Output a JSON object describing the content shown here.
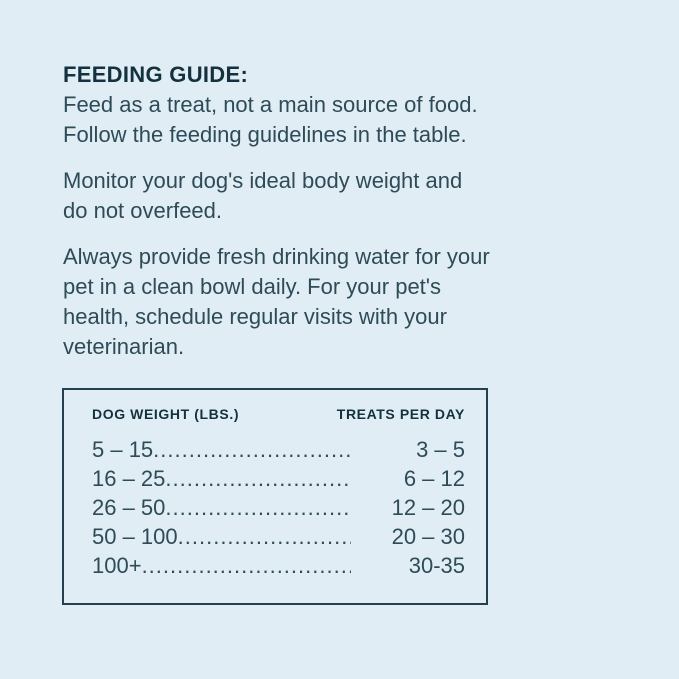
{
  "page": {
    "background_color": "#e1edf4",
    "text_color": "#2e4b58",
    "heading_color": "#143140",
    "table_border_color": "#22404e"
  },
  "guide": {
    "heading": "FEEDING GUIDE:",
    "paragraph1": {
      "line1": "Feed as a treat, not a main source of food.",
      "line2": "Follow the feeding guidelines in the table."
    },
    "paragraph2": {
      "line1": "Monitor your dog's ideal body weight and",
      "line2": "do not overfeed."
    },
    "paragraph3": {
      "line1": "Always provide fresh drinking water for your",
      "line2": "pet in a clean bowl daily. For your pet's",
      "line3": "health, schedule regular visits with your",
      "line4": "veterinarian."
    }
  },
  "feeding_table": {
    "col1_header": "DOG WEIGHT (LBS.)",
    "col2_header": "TREATS PER DAY",
    "dot_leader": "................................................................................",
    "rows": [
      {
        "weight": "5 – 15",
        "treats": "3 – 5"
      },
      {
        "weight": "16 – 25",
        "treats": "6 – 12"
      },
      {
        "weight": "26 – 50",
        "treats": "12 – 20"
      },
      {
        "weight": "50 – 100",
        "treats": "20 – 30"
      },
      {
        "weight": "100+",
        "treats": "30-35"
      }
    ]
  }
}
